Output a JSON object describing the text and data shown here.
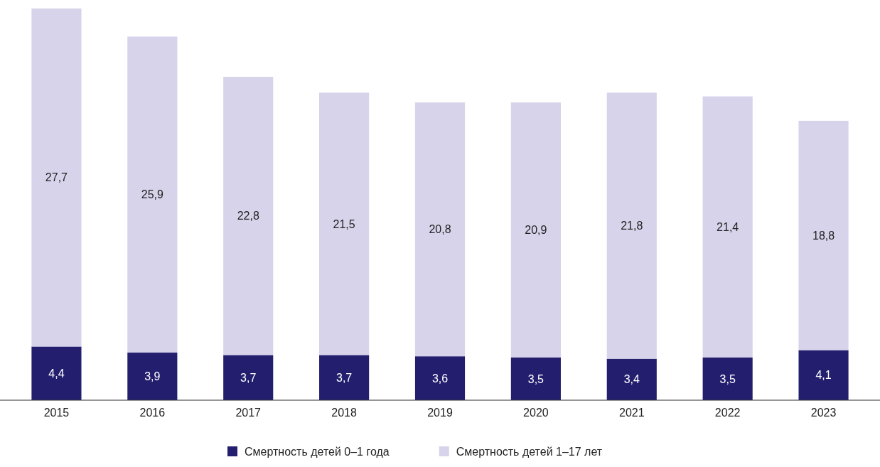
{
  "chart_data": {
    "type": "bar",
    "stacked": true,
    "legend": "bottom",
    "categories": [
      "2015",
      "2016",
      "2017",
      "2018",
      "2019",
      "2020",
      "2021",
      "2022",
      "2023"
    ],
    "series": [
      {
        "name": "Смертность детей 0–1 года",
        "color": "#231f6e",
        "values": [
          4.4,
          3.9,
          3.7,
          3.7,
          3.6,
          3.5,
          3.4,
          3.5,
          4.1
        ],
        "value_labels": [
          "4,4",
          "3,9",
          "3,7",
          "3,7",
          "3,6",
          "3,5",
          "3,4",
          "3,5",
          "4,1"
        ]
      },
      {
        "name": "Смертность детей 1–17 лет",
        "color": "#d6d3ea",
        "values": [
          27.7,
          25.9,
          22.8,
          21.5,
          20.8,
          20.9,
          21.8,
          21.4,
          18.8
        ],
        "value_labels": [
          "27,7",
          "25,9",
          "22,8",
          "21,5",
          "20,8",
          "20,9",
          "21,8",
          "21,4",
          "18,8"
        ]
      }
    ]
  }
}
